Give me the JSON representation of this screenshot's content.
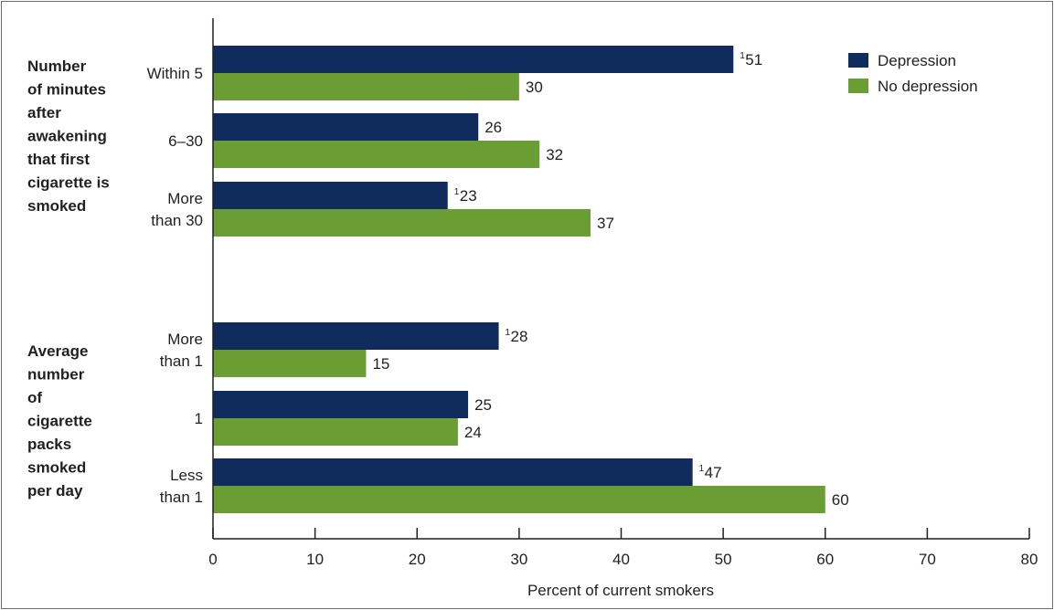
{
  "chart_data": {
    "type": "bar",
    "orientation": "horizontal",
    "xlabel": "Percent of current smokers",
    "xlim": [
      0,
      80
    ],
    "xticks": [
      0,
      10,
      20,
      30,
      40,
      50,
      60,
      70,
      80
    ],
    "legend_position": "top-right",
    "series": [
      {
        "name": "Depression",
        "color": "#0f2c5c"
      },
      {
        "name": "No depression",
        "color": "#6a9e34"
      }
    ],
    "groups": [
      {
        "title": [
          "Number",
          "of minutes",
          "after",
          "awakening",
          "that first",
          "cigarette is",
          "smoked"
        ],
        "categories": [
          {
            "label": [
              "Within 5"
            ],
            "values": [
              51,
              30
            ],
            "value_labels": [
              "51",
              "30"
            ],
            "notes": [
              "1",
              ""
            ]
          },
          {
            "label": [
              "6–30"
            ],
            "values": [
              26,
              32
            ],
            "value_labels": [
              "26",
              "32"
            ],
            "notes": [
              "",
              ""
            ]
          },
          {
            "label": [
              "More",
              "than 30"
            ],
            "values": [
              23,
              37
            ],
            "value_labels": [
              "23",
              "37"
            ],
            "notes": [
              "1",
              ""
            ]
          }
        ]
      },
      {
        "title": [
          "Average",
          "number",
          "of",
          "cigarette",
          "packs",
          "smoked",
          "per day"
        ],
        "categories": [
          {
            "label": [
              "More",
              "than 1"
            ],
            "values": [
              28,
              15
            ],
            "value_labels": [
              "28",
              "15"
            ],
            "notes": [
              "1",
              ""
            ]
          },
          {
            "label": [
              "1"
            ],
            "values": [
              25,
              24
            ],
            "value_labels": [
              "25",
              "24"
            ],
            "notes": [
              "",
              ""
            ]
          },
          {
            "label": [
              "Less",
              "than 1"
            ],
            "values": [
              47,
              60
            ],
            "value_labels": [
              "47",
              "60"
            ],
            "notes": [
              "1",
              ""
            ]
          }
        ]
      }
    ]
  }
}
